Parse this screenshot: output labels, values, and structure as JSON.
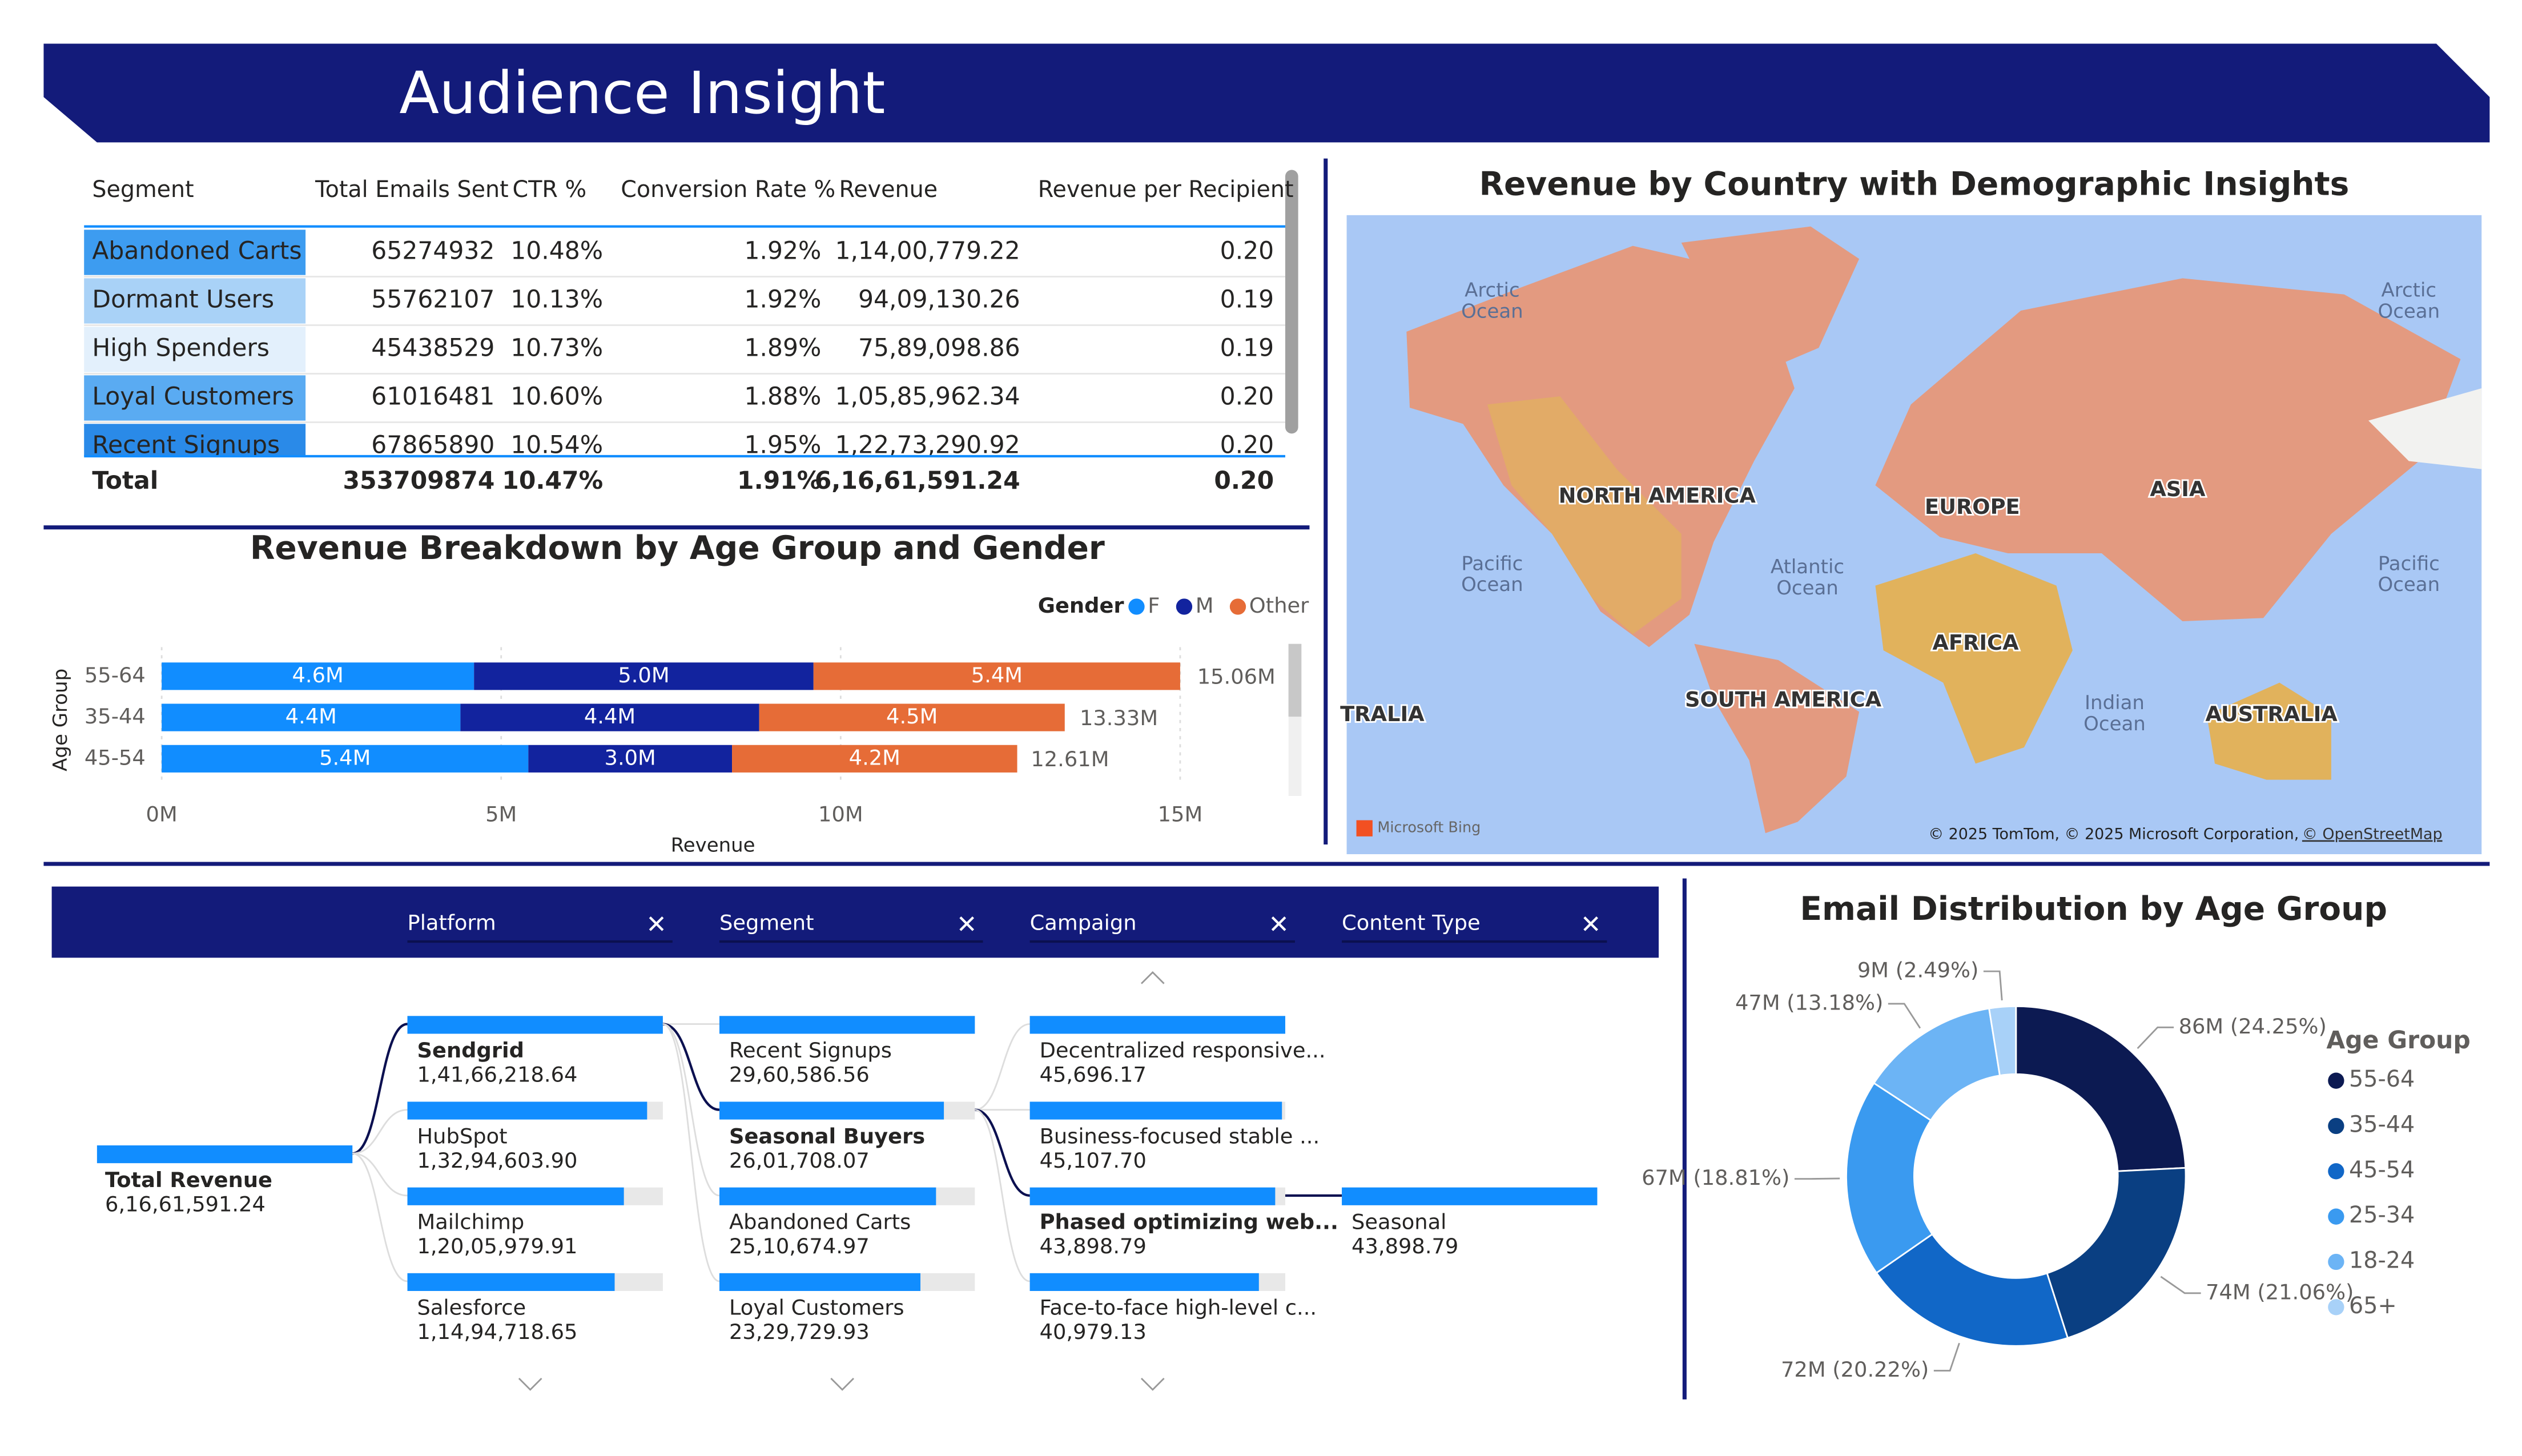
{
  "header": {
    "title": "Audience Insight"
  },
  "table": {
    "columns": [
      "Segment",
      "Total Emails Sent",
      "CTR %",
      "Conversion Rate %",
      "Revenue",
      "Revenue per Recipient"
    ],
    "rows": [
      [
        "Abandoned Carts",
        "65274932",
        "10.48%",
        "1.92%",
        "1,14,00,779.22",
        "0.20"
      ],
      [
        "Dormant Users",
        "55762107",
        "10.13%",
        "1.92%",
        "94,09,130.26",
        "0.19"
      ],
      [
        "High Spenders",
        "45438529",
        "10.73%",
        "1.89%",
        "75,89,098.86",
        "0.19"
      ],
      [
        "Loyal Customers",
        "61016481",
        "10.60%",
        "1.88%",
        "1,05,85,962.34",
        "0.20"
      ],
      [
        "Recent Signups",
        "67865890",
        "10.54%",
        "1.95%",
        "1,22,73,290.92",
        "0.20"
      ]
    ],
    "segment_colors": [
      "#3d9cf0",
      "#a9d2f7",
      "#e3f0fc",
      "#5aabf2",
      "#2a8ae8"
    ],
    "total": [
      "Total",
      "353709874",
      "10.47%",
      "1.91%",
      "6,16,61,591.24",
      "0.20"
    ]
  },
  "chart_data": [
    {
      "type": "bar",
      "orientation": "horizontal",
      "stacked": true,
      "title": "Revenue Breakdown by Age Group and Gender",
      "legend_title": "Gender",
      "xlabel": "Revenue",
      "ylabel": "Age Group",
      "categories": [
        "55-64",
        "35-44",
        "45-54"
      ],
      "series": [
        {
          "name": "F",
          "color": "#118dff",
          "values": [
            4600000,
            4400000,
            5400000
          ],
          "value_labels": [
            "4.6M",
            "4.4M",
            "5.4M"
          ]
        },
        {
          "name": "M",
          "color": "#12239e",
          "values": [
            5000000,
            4400000,
            3000000
          ],
          "value_labels": [
            "5.0M",
            "4.4M",
            "3.0M"
          ]
        },
        {
          "name": "Other",
          "color": "#e66c37",
          "values": [
            5400000,
            4500000,
            4200000
          ],
          "value_labels": [
            "5.4M",
            "4.5M",
            "4.2M"
          ]
        }
      ],
      "totals": [
        15060000,
        13330000,
        12610000
      ],
      "total_labels": [
        "15.06M",
        "13.33M",
        "12.61M"
      ],
      "xlim": [
        0,
        15000000
      ],
      "xticks": [
        {
          "value": 0,
          "label": "0M"
        },
        {
          "value": 5000000,
          "label": "5M"
        },
        {
          "value": 10000000,
          "label": "10M"
        },
        {
          "value": 15000000,
          "label": "15M"
        }
      ],
      "grid": true
    },
    {
      "type": "pie",
      "donut": true,
      "title": "Email Distribution by Age Group",
      "legend_title": "Age Group",
      "categories": [
        "55-64",
        "35-44",
        "45-54",
        "25-34",
        "18-24",
        "65+"
      ],
      "values": [
        86000000,
        74000000,
        72000000,
        67000000,
        47000000,
        9000000
      ],
      "value_labels": [
        "86M (24.25%)",
        "74M (21.06%)",
        "72M (20.22%)",
        "67M (18.81%)",
        "47M (13.18%)",
        "9M (2.49%)"
      ],
      "colors": [
        "#0c1a52",
        "#0a3f82",
        "#1167c7",
        "#3a9af0",
        "#6cb4f5",
        "#a8d1f8"
      ]
    }
  ],
  "map": {
    "title": "Revenue by Country with Demographic Insights",
    "labels": [
      "NORTH AMERICA",
      "EUROPE",
      "ASIA",
      "AFRICA",
      "SOUTH AMERICA",
      "AUSTRALIA",
      "TRALIA"
    ],
    "oceans": [
      [
        "Arctic",
        "Ocean"
      ],
      [
        "Arctic",
        "Ocean"
      ],
      [
        "Pacific",
        "Ocean"
      ],
      [
        "Atlantic",
        "Ocean"
      ],
      [
        "Pacific",
        "Ocean"
      ],
      [
        "Indian",
        "Ocean"
      ]
    ],
    "logo": "Microsoft Bing",
    "attribution": "© 2025 TomTom, © 2025 Microsoft Corporation,",
    "attribution_link": "© OpenStreetMap"
  },
  "tree": {
    "headers": [
      "Platform",
      "Segment",
      "Campaign",
      "Content Type"
    ],
    "root": {
      "label": "Total Revenue",
      "value": {
        "value": 61661591.24,
        "label": "6,16,61,591.24"
      }
    },
    "levels": [
      {
        "selected": 0,
        "nodes": [
          {
            "label": "Sendgrid",
            "value": {
              "value": 14166218.64,
              "label": "1,41,66,218.64"
            }
          },
          {
            "label": "HubSpot",
            "value": {
              "value": 13294603.9,
              "label": "1,32,94,603.90"
            }
          },
          {
            "label": "Mailchimp",
            "value": {
              "value": 12005979.91,
              "label": "1,20,05,979.91"
            }
          },
          {
            "label": "Salesforce",
            "value": {
              "value": 11494718.65,
              "label": "1,14,94,718.65"
            }
          }
        ]
      },
      {
        "selected": 1,
        "nodes": [
          {
            "label": "Recent Signups",
            "value": {
              "value": 2960586.56,
              "label": "29,60,586.56"
            }
          },
          {
            "label": "Seasonal Buyers",
            "value": {
              "value": 2601708.07,
              "label": "26,01,708.07"
            }
          },
          {
            "label": "Abandoned Carts",
            "value": {
              "value": 2510674.97,
              "label": "25,10,674.97"
            }
          },
          {
            "label": "Loyal Customers",
            "value": {
              "value": 2329729.93,
              "label": "23,29,729.93"
            }
          }
        ]
      },
      {
        "selected": 2,
        "nodes": [
          {
            "label": "Decentralized responsive...",
            "value": {
              "value": 45696.17,
              "label": "45,696.17"
            }
          },
          {
            "label": "Business-focused stable ...",
            "value": {
              "value": 45107.7,
              "label": "45,107.70"
            }
          },
          {
            "label": "Phased optimizing web...",
            "value": {
              "value": 43898.79,
              "label": "43,898.79"
            }
          },
          {
            "label": "Face-to-face high-level c...",
            "value": {
              "value": 40979.13,
              "label": "40,979.13"
            }
          }
        ]
      },
      {
        "selected": null,
        "nodes": [
          {
            "label": "Seasonal",
            "value": {
              "value": 43898.79,
              "label": "43,898.79"
            }
          }
        ]
      }
    ]
  }
}
